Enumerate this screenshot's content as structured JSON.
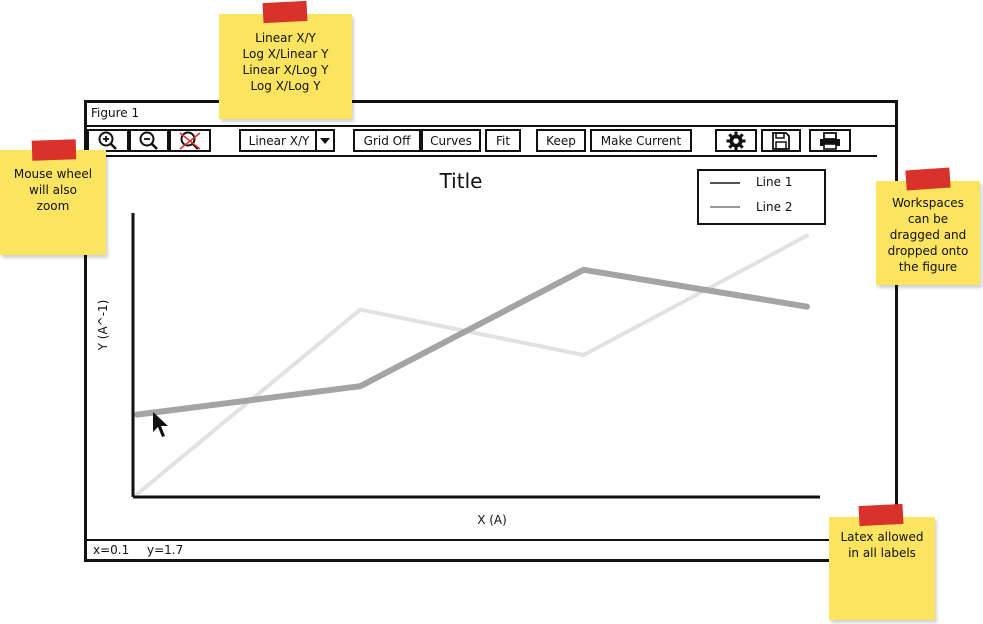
{
  "window": {
    "title": "Figure 1"
  },
  "toolbar": {
    "zoom_in_icon": "zoom-in-icon",
    "zoom_out_icon": "zoom-out-icon",
    "zoom_reset_icon": "zoom-reset-icon",
    "scale_select": "Linear X/Y",
    "grid_button": "Grid Off",
    "curves_button": "Curves",
    "fit_button": "Fit",
    "keep_button": "Keep",
    "make_current_button": "Make Current",
    "settings_icon": "gear-icon",
    "save_icon": "save-icon",
    "print_icon": "print-icon"
  },
  "status": {
    "x": "x=0.1",
    "y": "y=1.7"
  },
  "notes": {
    "scale_options": "Linear X/Y\nLog X/Linear Y\nLinear X/Log Y\nLog X/Log Y",
    "mouse_wheel": "Mouse wheel\nwill also\nzoom",
    "workspaces": "Workspaces\ncan be\ndragged and\ndropped onto\nthe figure",
    "latex": "Latex allowed\nin all labels"
  },
  "colors": {
    "line1": "#a4a4a4",
    "line2": "#e2e2e2",
    "note": "#fbe460",
    "tape": "#d9322b"
  },
  "chart_data": {
    "type": "line",
    "title": "Title",
    "xlabel": "X (A)",
    "ylabel": "Y (A^-1)",
    "x": [
      0,
      1,
      2,
      3
    ],
    "xlim": [
      0,
      3
    ],
    "ylim": [
      0,
      10
    ],
    "series": [
      {
        "name": "Line 1",
        "values": [
          2.9,
          3.9,
          8.0,
          6.7
        ]
      },
      {
        "name": "Line 2",
        "values": [
          0.1,
          6.6,
          5.0,
          9.2
        ]
      }
    ],
    "legend": "top-right",
    "grid": false
  }
}
